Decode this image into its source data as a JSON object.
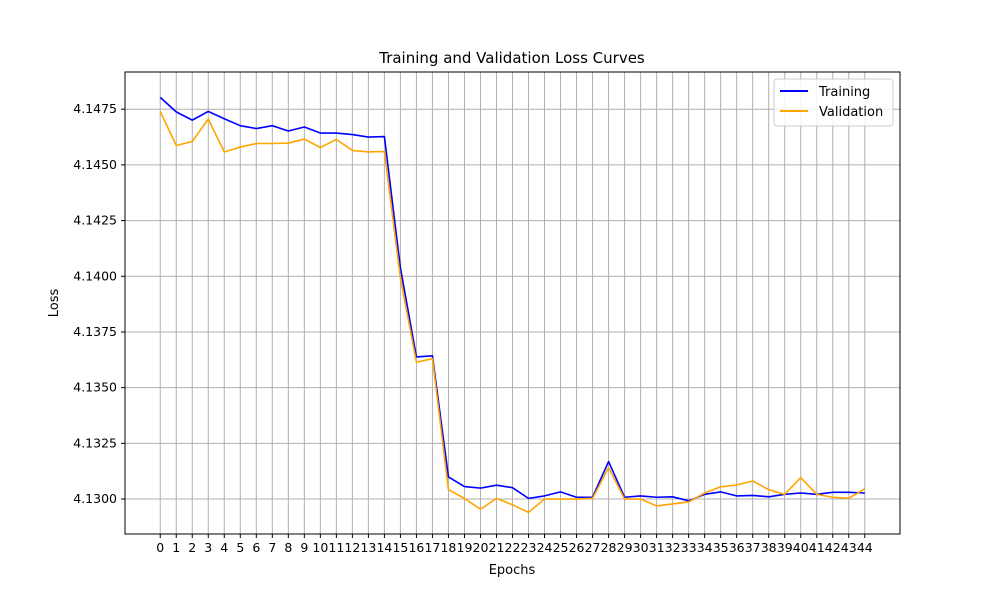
{
  "chart_data": {
    "type": "line",
    "title": "Training and Validation Loss Curves",
    "xlabel": "Epochs",
    "ylabel": "Loss",
    "x": [
      0,
      1,
      2,
      3,
      4,
      5,
      6,
      7,
      8,
      9,
      10,
      11,
      12,
      13,
      14,
      15,
      16,
      17,
      18,
      19,
      20,
      21,
      22,
      23,
      24,
      25,
      26,
      27,
      28,
      29,
      30,
      31,
      32,
      33,
      34,
      35,
      36,
      37,
      38,
      39,
      40,
      41,
      42,
      43,
      44
    ],
    "xticks": [
      "0",
      "1",
      "2",
      "3",
      "4",
      "5",
      "6",
      "7",
      "8",
      "9",
      "10",
      "11",
      "12",
      "13",
      "14",
      "15",
      "16",
      "17",
      "18",
      "19",
      "20",
      "21",
      "22",
      "23",
      "24",
      "25",
      "26",
      "27",
      "28",
      "29",
      "30",
      "31",
      "32",
      "33",
      "34",
      "35",
      "36",
      "37",
      "38",
      "39",
      "40",
      "41",
      "42",
      "43",
      "44"
    ],
    "yticks": [
      "4.1300",
      "4.1325",
      "4.1350",
      "4.1375",
      "4.1400",
      "4.1425",
      "4.1450",
      "4.1475"
    ],
    "ylim": [
      4.12843,
      4.14917
    ],
    "xlim": [
      -2.2,
      46.2
    ],
    "grid": true,
    "legend_position": "top-right",
    "series": [
      {
        "name": "Training",
        "color": "#0000ff",
        "values": [
          4.14803,
          4.14738,
          4.14701,
          4.1474,
          4.14707,
          4.14676,
          4.14663,
          4.14676,
          4.14652,
          4.1467,
          4.14643,
          4.14643,
          4.14636,
          4.14625,
          4.14627,
          4.14038,
          4.13638,
          4.13643,
          4.13099,
          4.13056,
          4.13049,
          4.13062,
          4.13051,
          4.13003,
          4.13014,
          4.13032,
          4.13008,
          4.13008,
          4.13168,
          4.13008,
          4.13014,
          4.13008,
          4.1301,
          4.12992,
          4.13021,
          4.13032,
          4.13014,
          4.13016,
          4.1301,
          4.13021,
          4.13027,
          4.13021,
          4.1303,
          4.1303,
          4.13027
        ]
      },
      {
        "name": "Validation",
        "color": "#ffa500",
        "values": [
          4.1474,
          4.14587,
          4.14605,
          4.14706,
          4.14558,
          4.1458,
          4.14596,
          4.14596,
          4.14598,
          4.14616,
          4.14578,
          4.14614,
          4.14565,
          4.14558,
          4.1456,
          4.13992,
          4.13614,
          4.1363,
          4.13042,
          4.13003,
          4.12954,
          4.13003,
          4.12974,
          4.1294,
          4.13,
          4.13,
          4.13,
          4.13003,
          4.13141,
          4.13,
          4.13,
          4.12969,
          4.12978,
          4.12987,
          4.13027,
          4.13055,
          4.13063,
          4.13081,
          4.13042,
          4.13021,
          4.13096,
          4.13021,
          4.13008,
          4.13003,
          4.13046
        ]
      }
    ]
  }
}
